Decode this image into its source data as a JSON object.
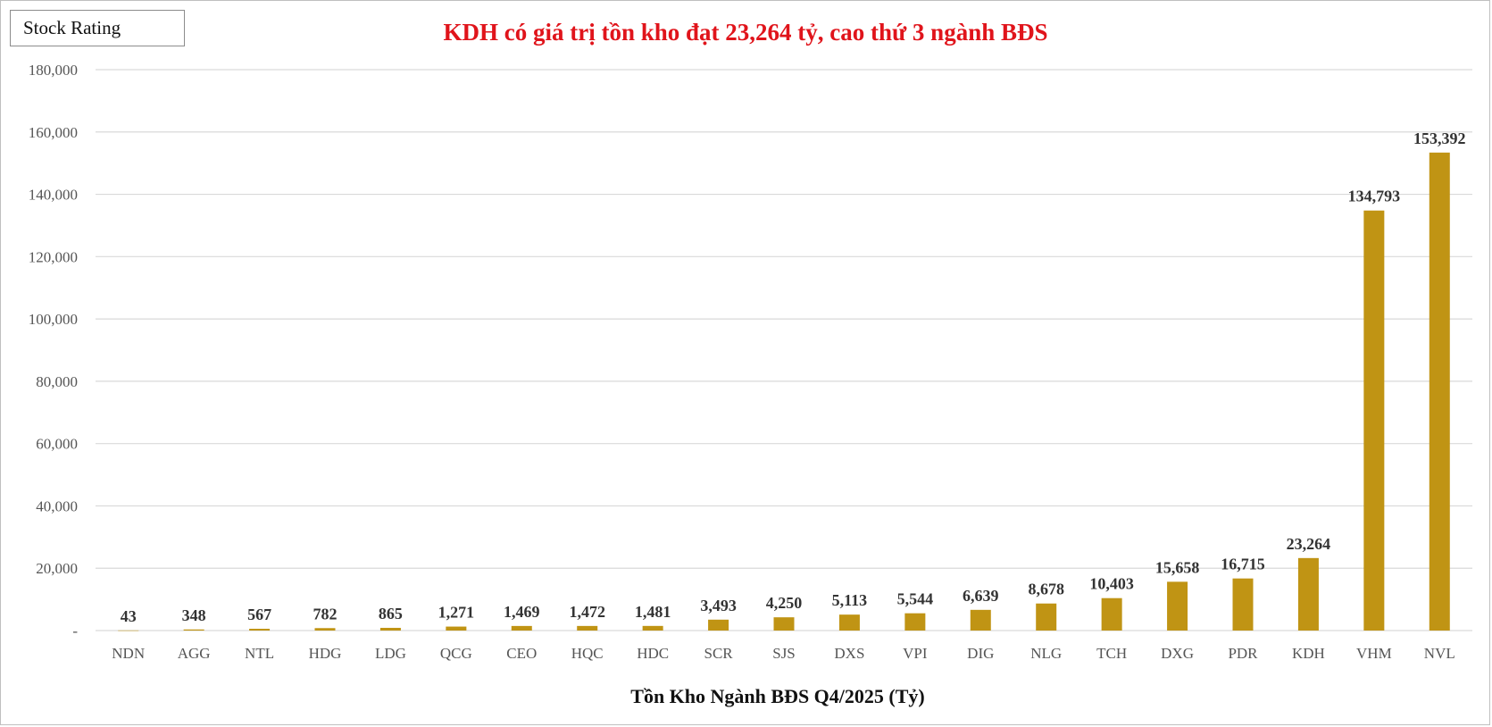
{
  "brand": {
    "label": "Stock Rating"
  },
  "chart_data": {
    "type": "bar",
    "title": "KDH có giá trị tồn kho đạt 23,264 tỷ, cao thứ 3 ngành BĐS",
    "xlabel": "Tồn Kho Ngành BĐS Q4/2025 (Tỷ)",
    "ylabel": "",
    "ylim": [
      0,
      180000
    ],
    "yticks": [
      0,
      20000,
      40000,
      60000,
      80000,
      100000,
      120000,
      140000,
      160000,
      180000
    ],
    "ytick_labels": [
      "-",
      "20,000",
      "40,000",
      "60,000",
      "80,000",
      "100,000",
      "120,000",
      "140,000",
      "160,000",
      "180,000"
    ],
    "grid": true,
    "legend": "none",
    "bar_color": "#c09414",
    "title_color": "#e0141b",
    "categories": [
      "NDN",
      "AGG",
      "NTL",
      "HDG",
      "LDG",
      "QCG",
      "CEO",
      "HQC",
      "HDC",
      "SCR",
      "SJS",
      "DXS",
      "VPI",
      "DIG",
      "NLG",
      "TCH",
      "DXG",
      "PDR",
      "KDH",
      "VHM",
      "NVL"
    ],
    "values": [
      43,
      348,
      567,
      782,
      865,
      1271,
      1469,
      1472,
      1481,
      3493,
      4250,
      5113,
      5544,
      6639,
      8678,
      10403,
      15658,
      16715,
      23264,
      134793,
      153392
    ],
    "data_labels": [
      "43",
      "348",
      "567",
      "782",
      "865",
      "1,271",
      "1,469",
      "1,472",
      "1,481",
      "3,493",
      "4,250",
      "5,113",
      "5,544",
      "6,639",
      "8,678",
      "10,403",
      "15,658",
      "16,715",
      "23,264",
      "134,793",
      "153,392"
    ]
  }
}
